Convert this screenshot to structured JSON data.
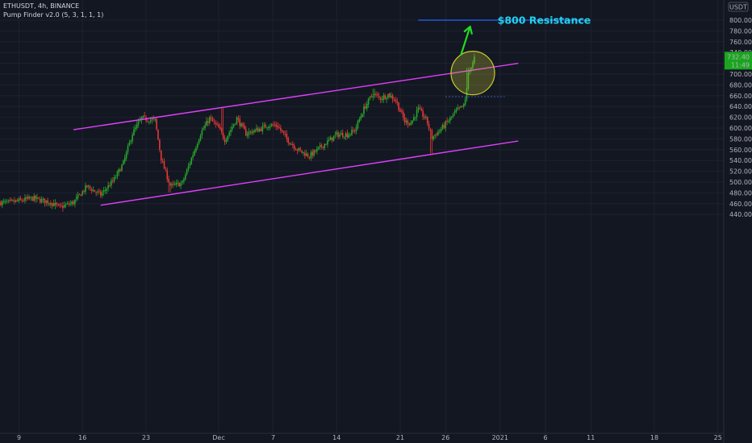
{
  "header": {
    "symbol_line": "ETHUSDT, 4h, BINANCE",
    "indicator_line": "Pump Finder v2.0 (5, 3, 1, 1, 1)"
  },
  "currency_badge": "USDT",
  "colors": {
    "background": "#131722",
    "up": "#26a62a",
    "down": "#e53935",
    "channel": "#e040fb",
    "resistance": "#2962ff",
    "arrow": "#22dd22",
    "annotation": "#22d3ee",
    "circle": "#c8c832"
  },
  "price_tags": {
    "last_price": "732.40",
    "countdown": "11:49"
  },
  "annotation": "$800 Resistance",
  "chart_data": {
    "type": "candlestick",
    "title": "ETHUSDT, 4h, BINANCE",
    "ylim": [
      430,
      820
    ],
    "y_ticks": [
      "440.00",
      "460.00",
      "480.00",
      "500.00",
      "520.00",
      "540.00",
      "560.00",
      "580.00",
      "600.00",
      "620.00",
      "640.00",
      "660.00",
      "680.00",
      "700.00",
      "720.00",
      "740.00",
      "760.00",
      "780.00",
      "800.00"
    ],
    "x_ticks": [
      "9",
      "16",
      "23",
      "Dec",
      "7",
      "14",
      "21",
      "26",
      "2021",
      "6",
      "11",
      "18",
      "25"
    ],
    "x_tick_days": [
      -22,
      -15,
      -8,
      0,
      6,
      13,
      20,
      25,
      31,
      36,
      41,
      48,
      55
    ],
    "anchors": [
      [
        -23.0,
        462
      ],
      [
        -20.5,
        470
      ],
      [
        -18.5,
        462
      ],
      [
        -17.5,
        453
      ],
      [
        -16.0,
        462
      ],
      [
        -14.5,
        492
      ],
      [
        -13.0,
        476
      ],
      [
        -11.5,
        505
      ],
      [
        -10.5,
        535
      ],
      [
        -9.5,
        590
      ],
      [
        -8.5,
        618
      ],
      [
        -7.0,
        614
      ],
      [
        -6.3,
        540
      ],
      [
        -5.3,
        492
      ],
      [
        -4.0,
        498
      ],
      [
        -3.3,
        530
      ],
      [
        -2.0,
        590
      ],
      [
        -1.0,
        618
      ],
      [
        0.0,
        600
      ],
      [
        0.7,
        578
      ],
      [
        2.0,
        618
      ],
      [
        3.0,
        590
      ],
      [
        4.5,
        598
      ],
      [
        5.5,
        606
      ],
      [
        6.5,
        604
      ],
      [
        7.5,
        580
      ],
      [
        8.7,
        560
      ],
      [
        10.0,
        548
      ],
      [
        11.5,
        568
      ],
      [
        13.0,
        588
      ],
      [
        14.2,
        588
      ],
      [
        15.0,
        596
      ],
      [
        16.0,
        636
      ],
      [
        17.0,
        664
      ],
      [
        17.8,
        655
      ],
      [
        18.7,
        662
      ],
      [
        19.5,
        652
      ],
      [
        20.0,
        632
      ],
      [
        20.5,
        612
      ],
      [
        21.2,
        610
      ],
      [
        22.0,
        635
      ],
      [
        22.9,
        615
      ],
      [
        23.5,
        582
      ],
      [
        24.6,
        600
      ],
      [
        25.5,
        617
      ],
      [
        26.2,
        632
      ],
      [
        27.1,
        642
      ],
      [
        27.5,
        700
      ],
      [
        28.2,
        732
      ]
    ],
    "overlays": {
      "channel_upper": [
        [
          -16.0,
          597
        ],
        [
          33.0,
          720
        ]
      ],
      "channel_lower": [
        [
          -13.0,
          457
        ],
        [
          33.0,
          576
        ]
      ],
      "resistance_line": {
        "price": 800,
        "from_day": 22.0,
        "to_day": 40.5
      },
      "pump_level": {
        "price": 658,
        "from_day": 25.0,
        "to_day": 31.5
      },
      "highlight_circle": {
        "day": 28.0,
        "price": 702
      },
      "arrow": {
        "from": [
          26.7,
          736
        ],
        "to": [
          27.7,
          788
        ]
      }
    }
  }
}
